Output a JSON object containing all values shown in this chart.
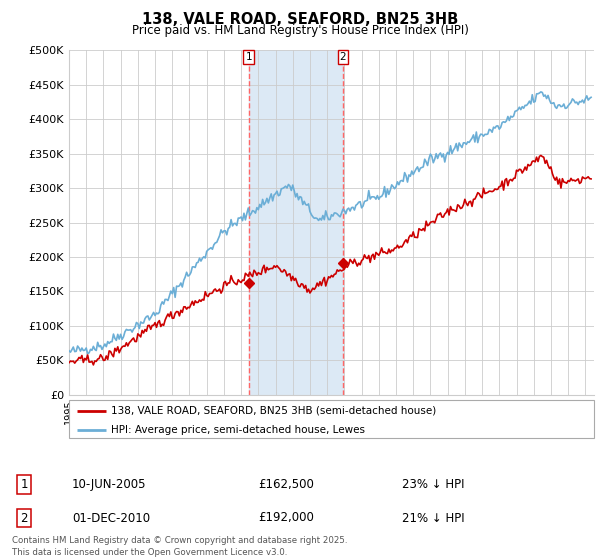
{
  "title1": "138, VALE ROAD, SEAFORD, BN25 3HB",
  "title2": "Price paid vs. HM Land Registry's House Price Index (HPI)",
  "ylabel_ticks": [
    "£0",
    "£50K",
    "£100K",
    "£150K",
    "£200K",
    "£250K",
    "£300K",
    "£350K",
    "£400K",
    "£450K",
    "£500K"
  ],
  "ylim": [
    0,
    500000
  ],
  "xlim_start": 1995.0,
  "xlim_end": 2025.5,
  "hpi_color": "#6baed6",
  "price_color": "#cc0000",
  "vline_color": "#ff6666",
  "transaction1_x": 2005.44,
  "transaction1_y": 162500,
  "transaction1_label": "1",
  "transaction2_x": 2010.92,
  "transaction2_y": 192000,
  "transaction2_label": "2",
  "shaded_x1": 2005.44,
  "shaded_x2": 2010.92,
  "legend_label_price": "138, VALE ROAD, SEAFORD, BN25 3HB (semi-detached house)",
  "legend_label_hpi": "HPI: Average price, semi-detached house, Lewes",
  "table_row1": [
    "1",
    "10-JUN-2005",
    "£162,500",
    "23% ↓ HPI"
  ],
  "table_row2": [
    "2",
    "01-DEC-2010",
    "£192,000",
    "21% ↓ HPI"
  ],
  "footnote": "Contains HM Land Registry data © Crown copyright and database right 2025.\nThis data is licensed under the Open Government Licence v3.0.",
  "background_color": "#ffffff",
  "grid_color": "#cccccc",
  "shaded_color": "#dce9f5"
}
